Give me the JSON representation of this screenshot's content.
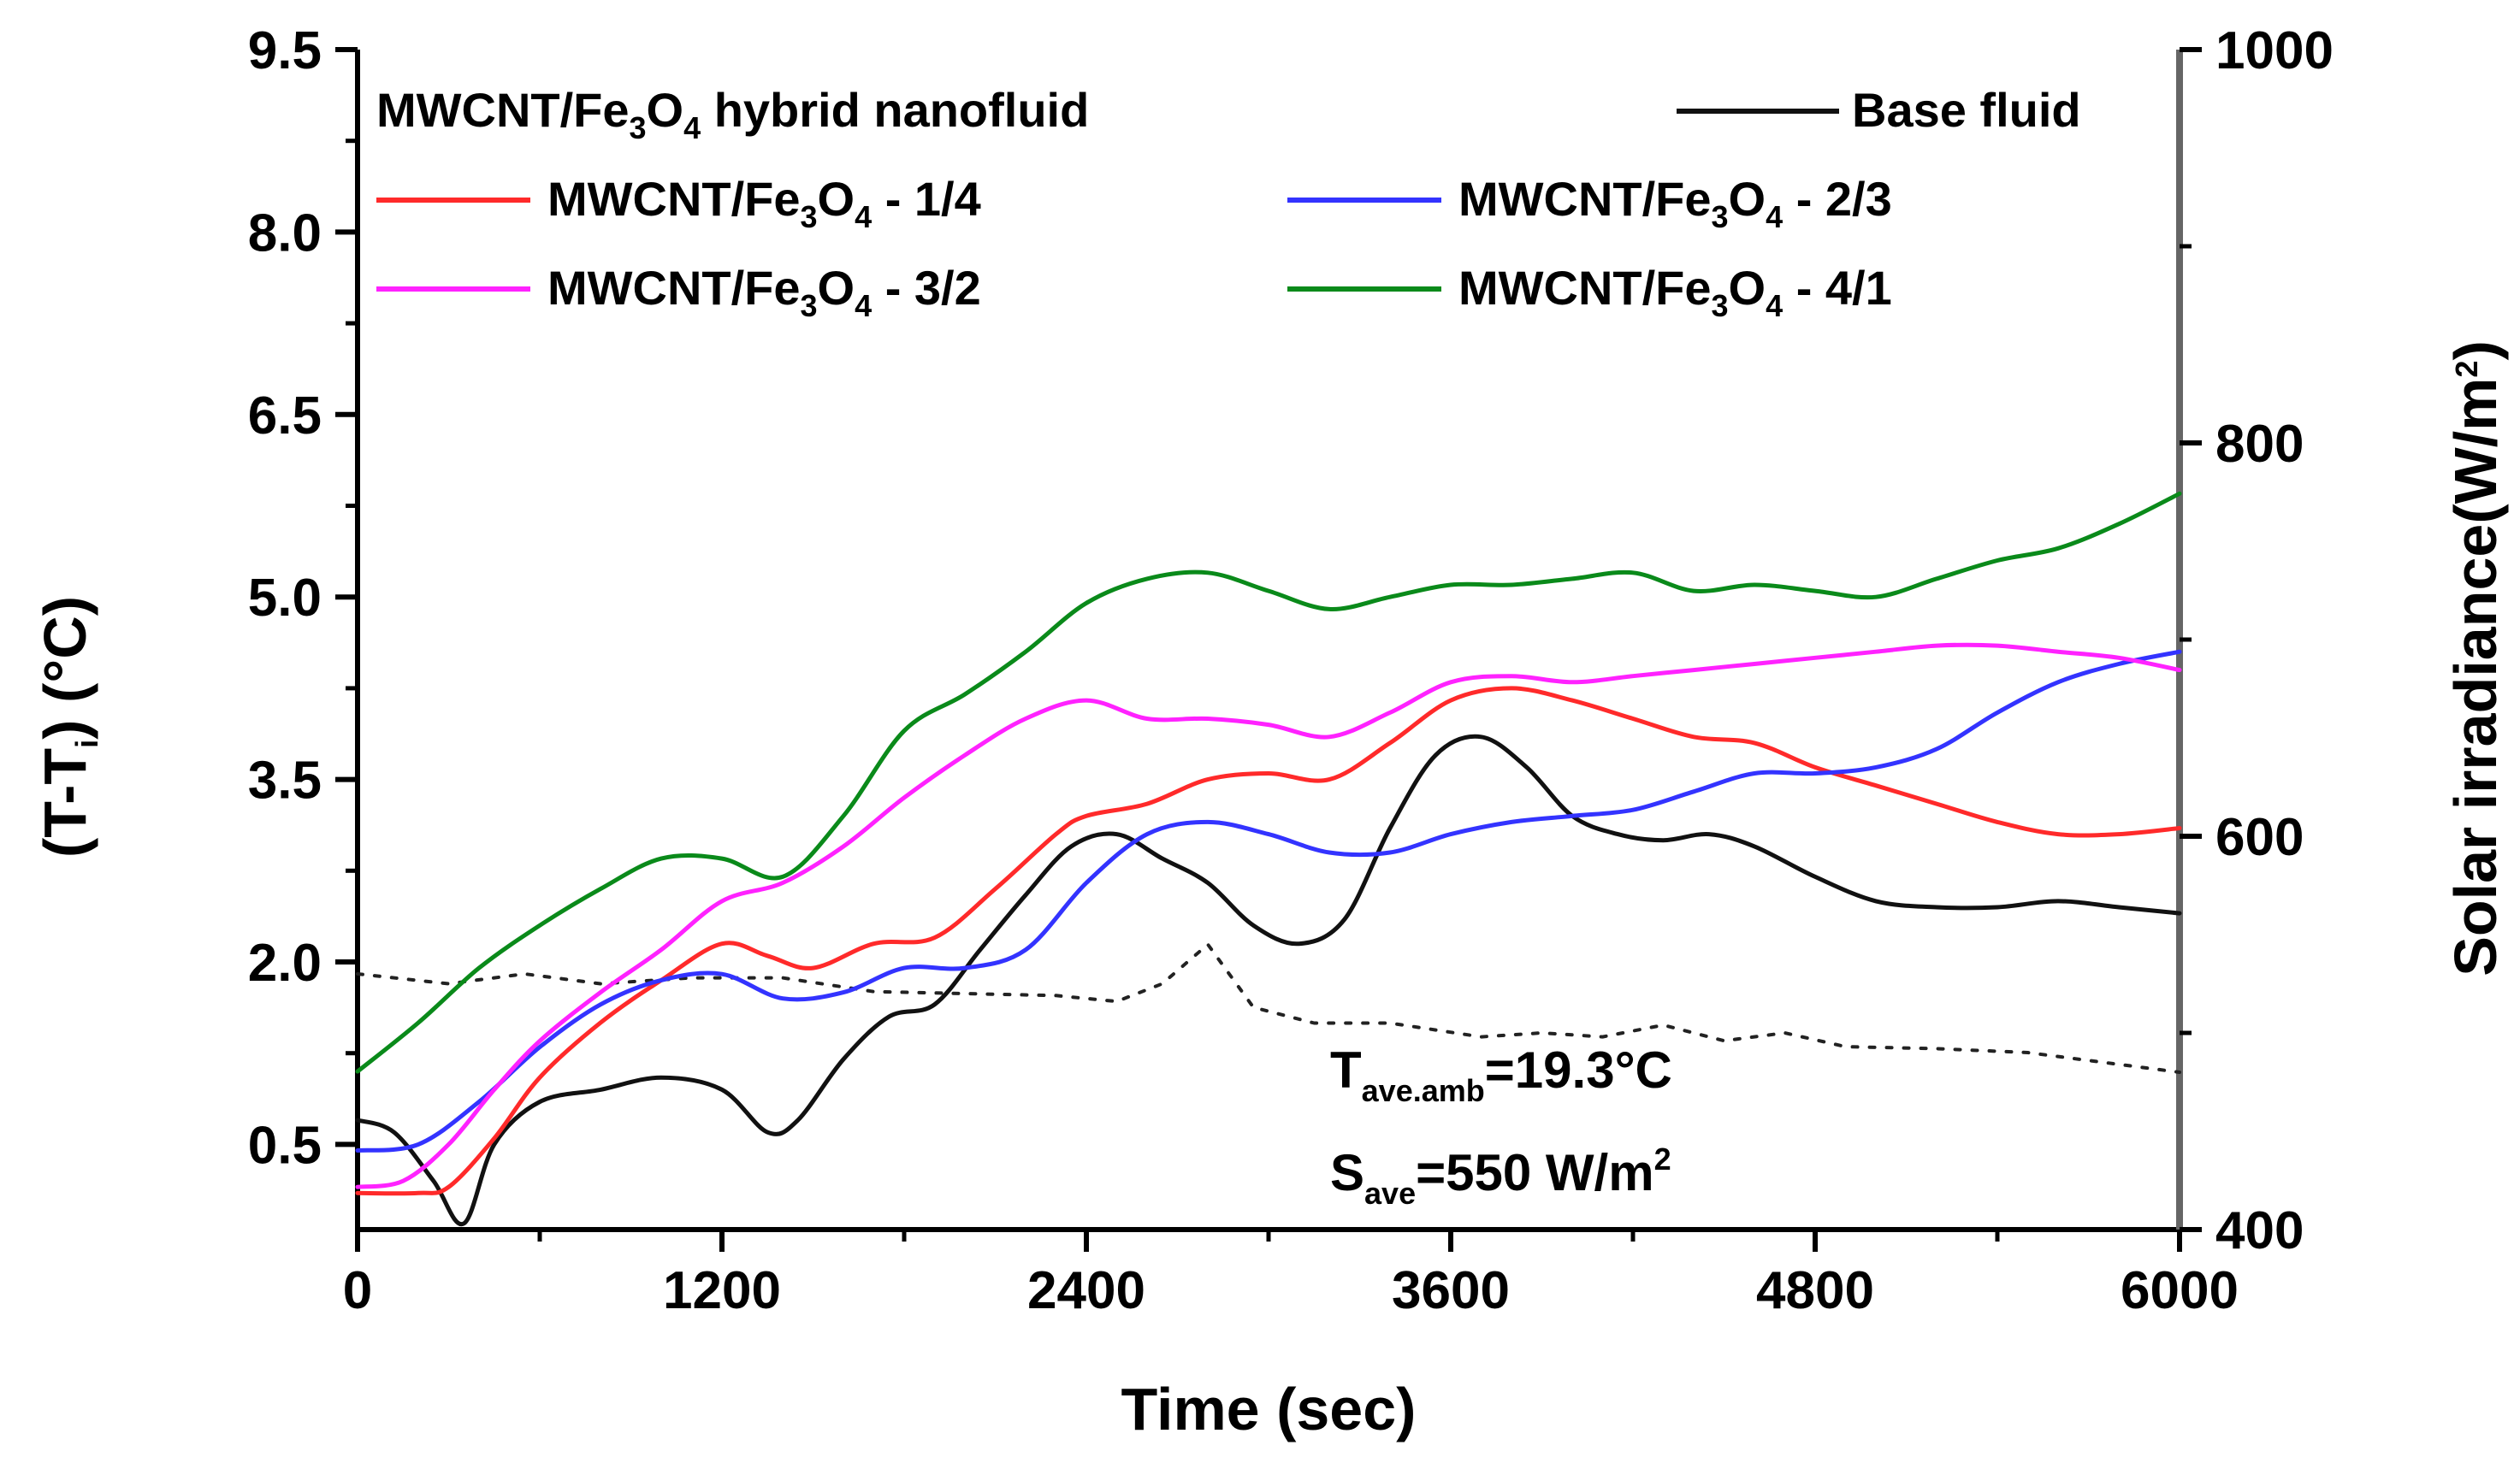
{
  "chart_data": {
    "type": "line",
    "title": "",
    "legend_title": "MWCNT/Fe3O4 hybrid nanofluid",
    "xlabel": "Time (sec)",
    "ylabel": "(T-Ti) (°C)",
    "ylabel_right": "Solar irradiance(W/m2)",
    "xlim": [
      0,
      6000
    ],
    "ylim": [
      -0.2,
      9.5
    ],
    "ylim_right": [
      400,
      1000
    ],
    "x_ticks": [
      0,
      1200,
      2400,
      3600,
      4800,
      6000
    ],
    "x_tick_labels": [
      "0",
      "1200",
      "2400",
      "3600",
      "4800",
      "6000"
    ],
    "y_ticks": [
      0.5,
      2.0,
      3.5,
      5.0,
      6.5,
      8.0,
      9.5
    ],
    "y_tick_labels": [
      "0.5",
      "2.0",
      "3.5",
      "5.0",
      "6.5",
      "8.0",
      "9.5"
    ],
    "y_right_ticks": [
      400,
      600,
      800,
      1000
    ],
    "y_right_tick_labels": [
      "400",
      "600",
      "800",
      "1000"
    ],
    "grid": false,
    "legend_position": "top",
    "series": [
      {
        "name": "MWCNT/Fe3O4 - 1/4",
        "label_main": "MWCNT/Fe",
        "label_sub1": "3",
        "label_mid": "O",
        "label_sub2": "4",
        "label_tail": " - 1/4",
        "color": "#ff2a2a",
        "dash": "solid",
        "x": [
          0,
          200,
          300,
          450,
          600,
          800,
          1000,
          1200,
          1350,
          1500,
          1700,
          1900,
          2100,
          2300,
          2400,
          2600,
          2800,
          3000,
          3200,
          3400,
          3600,
          3800,
          4000,
          4200,
          4400,
          4600,
          4800,
          5000,
          5200,
          5400,
          5600,
          5800,
          6000
        ],
        "values": [
          0.1,
          0.1,
          0.15,
          0.55,
          1.05,
          1.5,
          1.85,
          2.15,
          2.05,
          1.95,
          2.15,
          2.2,
          2.6,
          3.05,
          3.2,
          3.3,
          3.5,
          3.55,
          3.5,
          3.8,
          4.15,
          4.25,
          4.15,
          4.0,
          3.85,
          3.8,
          3.6,
          3.45,
          3.3,
          3.15,
          3.05,
          3.05,
          3.1
        ]
      },
      {
        "name": "MWCNT/Fe3O4 - 2/3",
        "label_main": "MWCNT/Fe",
        "label_sub1": "3",
        "label_mid": "O",
        "label_sub2": "4",
        "label_tail": " - 2/3",
        "color": "#3333ff",
        "dash": "solid",
        "x": [
          0,
          200,
          400,
          600,
          800,
          1000,
          1200,
          1400,
          1600,
          1800,
          2000,
          2200,
          2400,
          2600,
          2800,
          3000,
          3200,
          3400,
          3600,
          3800,
          4000,
          4200,
          4400,
          4600,
          4800,
          5000,
          5200,
          5400,
          5600,
          5800,
          6000
        ],
        "values": [
          0.45,
          0.5,
          0.85,
          1.3,
          1.65,
          1.85,
          1.9,
          1.7,
          1.75,
          1.95,
          1.95,
          2.1,
          2.65,
          3.05,
          3.15,
          3.05,
          2.9,
          2.9,
          3.05,
          3.15,
          3.2,
          3.25,
          3.4,
          3.55,
          3.55,
          3.6,
          3.75,
          4.05,
          4.3,
          4.45,
          4.55
        ]
      },
      {
        "name": "MWCNT/Fe3O4 - 3/2",
        "label_main": "MWCNT/Fe",
        "label_sub1": "3",
        "label_mid": "O",
        "label_sub2": "4",
        "label_tail": " - 3/2",
        "color": "#ff22ff",
        "dash": "solid",
        "x": [
          0,
          150,
          300,
          450,
          600,
          800,
          1000,
          1200,
          1400,
          1600,
          1800,
          2000,
          2200,
          2400,
          2600,
          2800,
          3000,
          3200,
          3400,
          3600,
          3800,
          4000,
          4200,
          4400,
          4600,
          4800,
          5000,
          5200,
          5400,
          5600,
          5800,
          6000
        ],
        "values": [
          0.15,
          0.2,
          0.5,
          0.95,
          1.35,
          1.75,
          2.1,
          2.5,
          2.65,
          2.95,
          3.35,
          3.7,
          4.0,
          4.15,
          4.0,
          4.0,
          3.95,
          3.85,
          4.05,
          4.3,
          4.35,
          4.3,
          4.35,
          4.4,
          4.45,
          4.5,
          4.55,
          4.6,
          4.6,
          4.55,
          4.5,
          4.4
        ]
      },
      {
        "name": "MWCNT/Fe3O4 - 4/1",
        "label_main": "MWCNT/Fe",
        "label_sub1": "3",
        "label_mid": "O",
        "label_sub2": "4",
        "label_tail": " - 4/1",
        "color": "#0a8a1a",
        "dash": "solid",
        "x": [
          0,
          200,
          400,
          600,
          800,
          1000,
          1200,
          1400,
          1600,
          1800,
          2000,
          2200,
          2400,
          2600,
          2800,
          3000,
          3200,
          3400,
          3600,
          3800,
          4000,
          4200,
          4400,
          4600,
          4800,
          5000,
          5200,
          5400,
          5600,
          5800,
          6000
        ],
        "values": [
          1.1,
          1.5,
          1.95,
          2.3,
          2.6,
          2.85,
          2.85,
          2.7,
          3.2,
          3.9,
          4.2,
          4.55,
          4.95,
          5.15,
          5.2,
          5.05,
          4.9,
          5.0,
          5.1,
          5.1,
          5.15,
          5.2,
          5.05,
          5.1,
          5.05,
          5.0,
          5.15,
          5.3,
          5.4,
          5.6,
          5.85
        ]
      },
      {
        "name": "Base fluid",
        "label_main": "Base fluid",
        "label_sub1": "",
        "label_mid": "",
        "label_sub2": "",
        "label_tail": "",
        "color": "#111111",
        "dash": "solid",
        "x": [
          0,
          120,
          250,
          350,
          450,
          600,
          800,
          1000,
          1200,
          1350,
          1450,
          1600,
          1750,
          1900,
          2050,
          2200,
          2350,
          2500,
          2650,
          2800,
          2950,
          3100,
          3250,
          3400,
          3550,
          3700,
          3850,
          4000,
          4150,
          4300,
          4450,
          4600,
          4800,
          5000,
          5200,
          5400,
          5600,
          5800,
          6000
        ],
        "values": [
          0.7,
          0.6,
          0.2,
          -0.15,
          0.5,
          0.85,
          0.95,
          1.05,
          0.95,
          0.6,
          0.7,
          1.2,
          1.55,
          1.65,
          2.1,
          2.55,
          2.95,
          3.05,
          2.85,
          2.65,
          2.3,
          2.15,
          2.35,
          3.1,
          3.7,
          3.85,
          3.6,
          3.2,
          3.05,
          3.0,
          3.05,
          2.95,
          2.7,
          2.5,
          2.45,
          2.45,
          2.5,
          2.45,
          2.4
        ]
      },
      {
        "name": "Solar irradiance",
        "axis": "right",
        "color": "#222222",
        "dash": "dotted",
        "x": [
          0,
          300,
          550,
          800,
          1100,
          1400,
          1700,
          2000,
          2300,
          2500,
          2650,
          2800,
          2950,
          3150,
          3400,
          3700,
          3900,
          4100,
          4300,
          4500,
          4700,
          4900,
          5200,
          5500,
          5800,
          6000
        ],
        "values": [
          530,
          525,
          530,
          525,
          528,
          528,
          521,
          520,
          519,
          516,
          525,
          545,
          513,
          505,
          505,
          498,
          500,
          498,
          504,
          496,
          500,
          493,
          492,
          490,
          484,
          480
        ]
      }
    ],
    "annotations": [
      {
        "main": "T",
        "sub": "ave.amb",
        "tail": "=19.3°C",
        "sup": ""
      },
      {
        "main": "S",
        "sub": "ave",
        "tail": "=550 W/m",
        "sup": "2"
      }
    ]
  }
}
